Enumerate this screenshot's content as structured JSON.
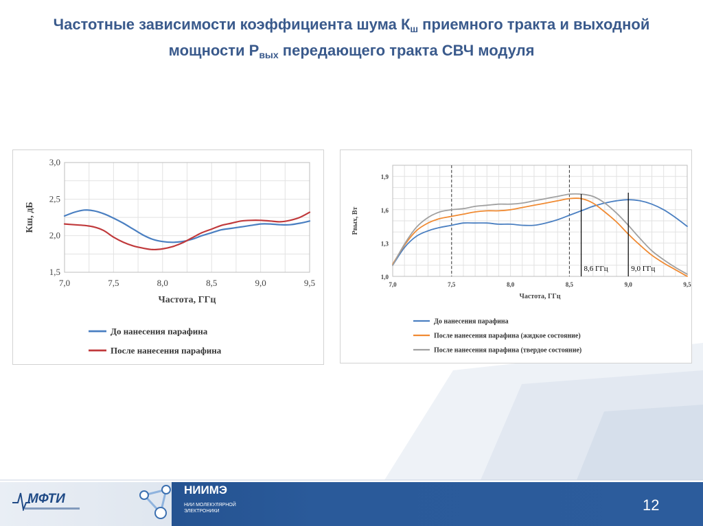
{
  "slide": {
    "title_line1_a": "Частотные зависимости коэффициента шума К",
    "title_line1_sub": "ш",
    "title_line1_b": " приемного тракта и выходной",
    "title_line2_a": "мощности Р",
    "title_line2_sub": "вых",
    "title_line2_b": " передающего тракта СВЧ модуля",
    "page_number": "12"
  },
  "footer": {
    "mfti_logo_text": "МФТИ",
    "niime_title": "НИИМЭ",
    "niime_subtitle": "НИИ МОЛЕКУЛЯРНОЙ ЭЛЕКТРОНИКИ"
  },
  "chart_data": [
    {
      "type": "line",
      "xlabel": "Частота, ГГц",
      "ylabel": "Кш, дБ",
      "xlim": [
        7.0,
        9.5
      ],
      "ylim": [
        1.5,
        3.0
      ],
      "x_ticks": [
        "7,0",
        "7,5",
        "8,0",
        "8,5",
        "9,0",
        "9,5"
      ],
      "y_ticks": [
        "1,5",
        "2,0",
        "2,5",
        "3,0"
      ],
      "grid": true,
      "legend": "bottom",
      "series": [
        {
          "name": "До нанесения парафина",
          "color": "#4a7fc1",
          "x": [
            7.0,
            7.1,
            7.2,
            7.3,
            7.4,
            7.5,
            7.6,
            7.7,
            7.8,
            7.9,
            8.0,
            8.1,
            8.2,
            8.3,
            8.4,
            8.5,
            8.6,
            8.7,
            8.8,
            8.9,
            9.0,
            9.1,
            9.2,
            9.3,
            9.4,
            9.5
          ],
          "y": [
            2.27,
            2.32,
            2.35,
            2.34,
            2.3,
            2.24,
            2.17,
            2.09,
            2.01,
            1.95,
            1.92,
            1.91,
            1.92,
            1.95,
            2.0,
            2.04,
            2.08,
            2.1,
            2.12,
            2.14,
            2.16,
            2.16,
            2.15,
            2.15,
            2.17,
            2.2
          ]
        },
        {
          "name": "После нанесения парафина",
          "color": "#c0393b",
          "x": [
            7.0,
            7.1,
            7.2,
            7.3,
            7.4,
            7.5,
            7.6,
            7.7,
            7.8,
            7.9,
            8.0,
            8.1,
            8.2,
            8.3,
            8.4,
            8.5,
            8.6,
            8.7,
            8.8,
            8.9,
            9.0,
            9.1,
            9.2,
            9.3,
            9.4,
            9.5
          ],
          "y": [
            2.16,
            2.15,
            2.14,
            2.12,
            2.07,
            1.98,
            1.91,
            1.86,
            1.83,
            1.81,
            1.82,
            1.85,
            1.9,
            1.97,
            2.04,
            2.09,
            2.14,
            2.17,
            2.2,
            2.21,
            2.21,
            2.2,
            2.19,
            2.21,
            2.25,
            2.32
          ]
        }
      ]
    },
    {
      "type": "line",
      "xlabel": "Частота, ГГц",
      "ylabel": "Рвых, Вт",
      "xlim": [
        7.0,
        9.5
      ],
      "ylim": [
        1.0,
        2.0
      ],
      "x_ticks": [
        "7,0",
        "7,5",
        "8,0",
        "8,5",
        "9,0",
        "9,5"
      ],
      "y_ticks": [
        "1,0",
        "1,3",
        "1,6",
        "1,9"
      ],
      "grid": true,
      "legend": "bottom",
      "dashed_vlines_x": [
        7.5,
        8.5
      ],
      "marker_lines": [
        {
          "x": 8.6,
          "label": "8,6 ГГц"
        },
        {
          "x": 9.0,
          "label": "9,0 ГГц"
        }
      ],
      "series": [
        {
          "name": "До нанесения парафина",
          "color": "#4a7fc1",
          "x": [
            7.0,
            7.1,
            7.2,
            7.3,
            7.4,
            7.5,
            7.6,
            7.7,
            7.8,
            7.9,
            8.0,
            8.1,
            8.2,
            8.3,
            8.4,
            8.5,
            8.6,
            8.7,
            8.8,
            8.9,
            9.0,
            9.1,
            9.2,
            9.3,
            9.4,
            9.5
          ],
          "y": [
            1.1,
            1.26,
            1.36,
            1.41,
            1.44,
            1.46,
            1.48,
            1.48,
            1.48,
            1.47,
            1.47,
            1.46,
            1.46,
            1.48,
            1.51,
            1.55,
            1.59,
            1.63,
            1.66,
            1.68,
            1.69,
            1.68,
            1.65,
            1.6,
            1.53,
            1.45
          ]
        },
        {
          "name": "После нанесения парафина (жидкое состояние)",
          "color": "#f08a32",
          "x": [
            7.0,
            7.1,
            7.2,
            7.3,
            7.4,
            7.5,
            7.6,
            7.7,
            7.8,
            7.9,
            8.0,
            8.1,
            8.2,
            8.3,
            8.4,
            8.5,
            8.6,
            8.7,
            8.8,
            8.9,
            9.0,
            9.1,
            9.2,
            9.3,
            9.4,
            9.5
          ],
          "y": [
            1.11,
            1.28,
            1.41,
            1.48,
            1.52,
            1.54,
            1.56,
            1.58,
            1.59,
            1.59,
            1.6,
            1.62,
            1.64,
            1.66,
            1.68,
            1.7,
            1.7,
            1.66,
            1.58,
            1.49,
            1.38,
            1.28,
            1.19,
            1.12,
            1.06,
            1.0
          ]
        },
        {
          "name": "После нанесения парафина (твердое состояние)",
          "color": "#a0a0a0",
          "x": [
            7.0,
            7.1,
            7.2,
            7.3,
            7.4,
            7.5,
            7.6,
            7.7,
            7.8,
            7.9,
            8.0,
            8.1,
            8.2,
            8.3,
            8.4,
            8.5,
            8.6,
            8.7,
            8.8,
            8.9,
            9.0,
            9.1,
            9.2,
            9.3,
            9.4,
            9.5
          ],
          "y": [
            1.1,
            1.29,
            1.44,
            1.53,
            1.58,
            1.6,
            1.61,
            1.63,
            1.64,
            1.65,
            1.65,
            1.66,
            1.68,
            1.7,
            1.72,
            1.74,
            1.74,
            1.72,
            1.66,
            1.57,
            1.46,
            1.34,
            1.23,
            1.15,
            1.08,
            1.02
          ]
        }
      ]
    }
  ]
}
